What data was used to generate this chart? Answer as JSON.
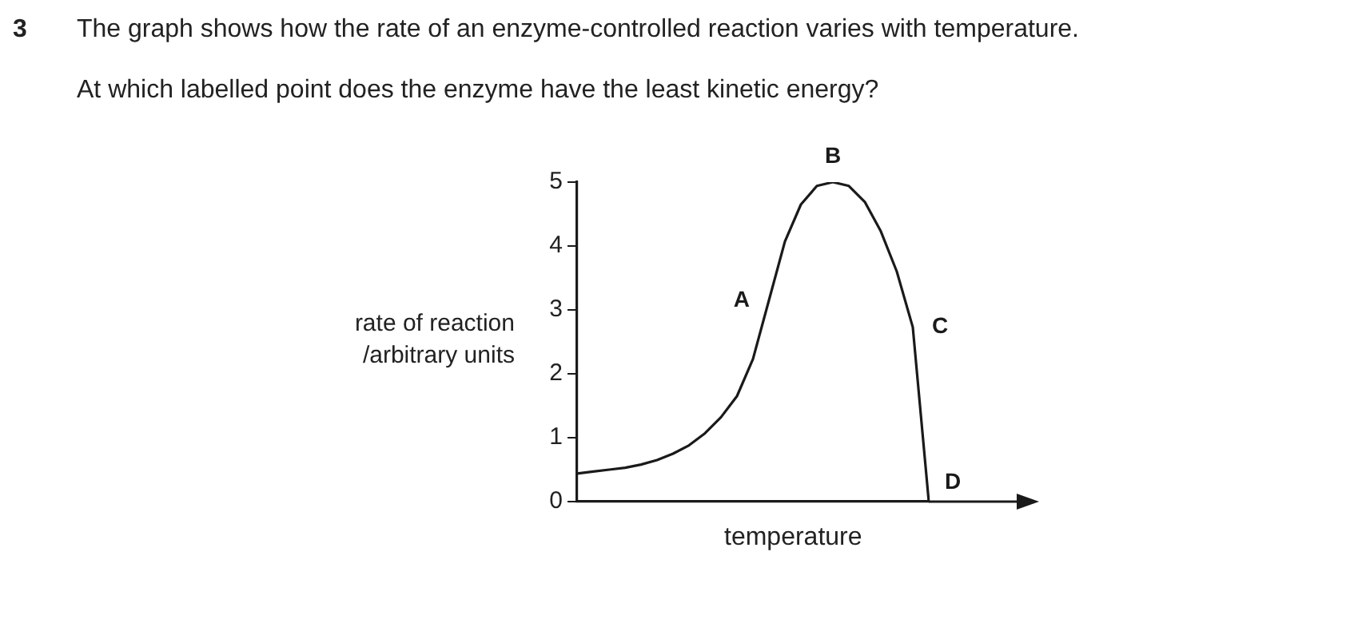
{
  "chart_data": {
    "type": "line",
    "title": "The graph shows how the rate of an enzyme-controlled reaction varies with temperature.",
    "subtitle": "At which labelled point does the enzyme have the least kinetic energy?",
    "xlabel": "temperature",
    "ylabel": "rate of reaction\n/arbitrary units",
    "categories": [
      null,
      null,
      null,
      null,
      null,
      null,
      null,
      null,
      null,
      null,
      null,
      null,
      null,
      null,
      null,
      null,
      null,
      null,
      null,
      null,
      null,
      null,
      null
    ],
    "series": [
      {
        "color": "#1a1a1a",
        "values": [
          0.44,
          0.47,
          0.5,
          0.53,
          0.58,
          0.65,
          0.75,
          0.88,
          1.07,
          1.32,
          1.65,
          2.23,
          3.15,
          4.07,
          4.65,
          4.94,
          5.0,
          4.94,
          4.69,
          4.23,
          3.6,
          2.73,
          0
        ],
        "value_labels": [
          null,
          null,
          null,
          null,
          null,
          null,
          null,
          null,
          null,
          null,
          null,
          null,
          "A",
          null,
          null,
          null,
          "B",
          null,
          null,
          null,
          null,
          "C",
          "D"
        ]
      }
    ],
    "ylim": [
      0,
      5
    ],
    "yticks": [
      0,
      1,
      2,
      3,
      4,
      5
    ],
    "tick_labels": "y",
    "grid": false,
    "legend": false,
    "marker": "none",
    "line_style": "solid",
    "annotations": [
      "3"
    ]
  }
}
